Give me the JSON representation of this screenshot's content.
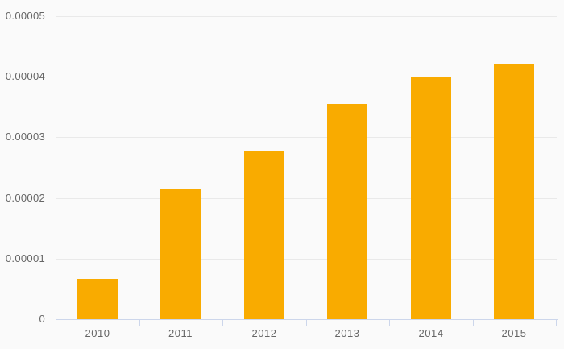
{
  "chart_data": {
    "type": "bar",
    "title": "",
    "xlabel": "",
    "ylabel": "",
    "categories": [
      "2010",
      "2011",
      "2012",
      "2013",
      "2014",
      "2015"
    ],
    "values": [
      6.6e-06,
      2.16e-05,
      2.78e-05,
      3.55e-05,
      3.99e-05,
      4.2e-05
    ],
    "ylim": [
      0,
      5e-05
    ],
    "y_ticks": [
      {
        "label": "0.00005",
        "value": 5e-05
      },
      {
        "label": "0.00004",
        "value": 4e-05
      },
      {
        "label": "0.00003",
        "value": 3e-05
      },
      {
        "label": "0.00002",
        "value": 2e-05
      },
      {
        "label": "0.00001",
        "value": 1e-05
      },
      {
        "label": "0",
        "value": 0
      }
    ],
    "grid": true,
    "legend_position": "none",
    "colors": {
      "bar": "#f9ab00",
      "background": "#fafafa",
      "gridline": "#e9e9e9",
      "axis_line": "#ccd6eb",
      "label_text": "#666666"
    }
  }
}
